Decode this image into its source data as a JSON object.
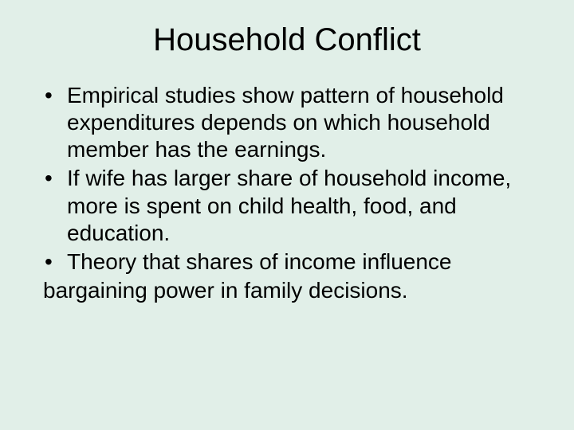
{
  "slide": {
    "background_color": "#e1efe8",
    "text_color": "#000000",
    "font_family": "Arial",
    "title": {
      "text": "Household Conflict",
      "fontsize_pt": 40,
      "align": "center"
    },
    "body_fontsize_pt": 28,
    "bullet_char": "•",
    "bullets": [
      "Empirical studies show pattern of household expenditures depends on which household member has the earnings.",
      "If wife has larger share of household income, more is spent on child health, food, and education.",
      "Theory that shares of income influence"
    ],
    "continuation_line": "bargaining power in family  decisions."
  }
}
